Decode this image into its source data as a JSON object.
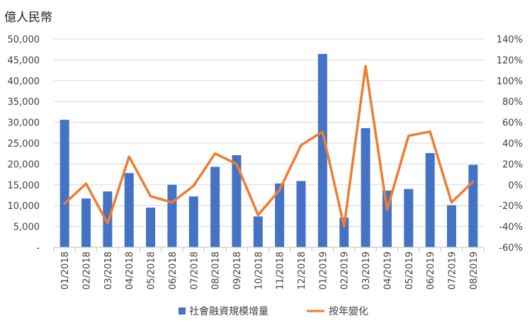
{
  "chart_data": {
    "type": "bar",
    "unit_label": "億人民幣",
    "categories": [
      "01/2018",
      "02/2018",
      "03/2018",
      "04/2018",
      "05/2018",
      "06/2018",
      "07/2018",
      "08/2018",
      "09/2018",
      "10/2018",
      "11/2018",
      "12/2018",
      "01/2019",
      "02/2019",
      "03/2019",
      "04/2019",
      "05/2019",
      "06/2019",
      "07/2019",
      "08/2019"
    ],
    "series": [
      {
        "name": "社會融資規模增量",
        "type": "bar",
        "axis": "left",
        "color": "#4472C4",
        "values": [
          30600,
          11700,
          13400,
          17800,
          9500,
          15000,
          12200,
          19300,
          22100,
          7400,
          15300,
          15900,
          46400,
          7100,
          28600,
          13600,
          14000,
          22600,
          10100,
          19800
        ]
      },
      {
        "name": "按年變化",
        "type": "line",
        "axis": "right",
        "color": "#ED7D31",
        "values": [
          -18,
          1,
          -37,
          27,
          -11,
          -17,
          -1,
          30,
          20,
          -29,
          -5,
          38,
          51,
          -40,
          114,
          -24,
          47,
          51,
          -17,
          3
        ]
      }
    ],
    "y_left": {
      "ylim": [
        0,
        50000
      ],
      "ticks": [
        "-",
        "5,000",
        "10,000",
        "15,000",
        "20,000",
        "25,000",
        "30,000",
        "35,000",
        "40,000",
        "45,000",
        "50,000"
      ]
    },
    "y_right": {
      "ylim": [
        -60,
        140
      ],
      "ticks": [
        "-60%",
        "-40%",
        "-20%",
        "0%",
        "20%",
        "40%",
        "60%",
        "80%",
        "100%",
        "120%",
        "140%"
      ]
    },
    "grid": true,
    "legend": "bottom"
  }
}
